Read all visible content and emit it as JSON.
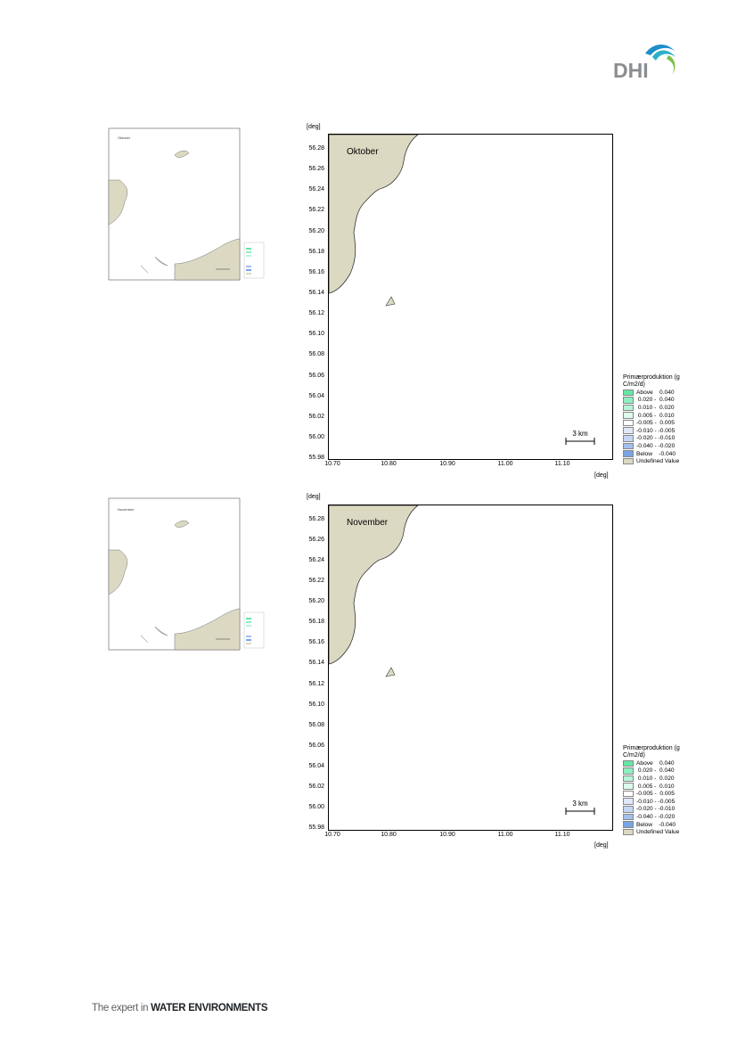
{
  "header": {
    "logo_text": "DHI"
  },
  "axes": {
    "unit_label": "[deg]",
    "y_ticks": [
      "56.28",
      "56.26",
      "56.24",
      "56.22",
      "56.20",
      "56.18",
      "56.16",
      "56.14",
      "56.12",
      "56.10",
      "56.08",
      "56.06",
      "56.04",
      "56.02",
      "56.00",
      "55.98"
    ],
    "x_ticks": [
      "10.70",
      "10.80",
      "10.90",
      "11.00",
      "11.10"
    ]
  },
  "figures": [
    {
      "month": "Oktober",
      "thumb_label": "Oktober",
      "scale_label": "3 km"
    },
    {
      "month": "November",
      "thumb_label": "November",
      "scale_label": "3 km"
    }
  ],
  "legend": {
    "title": "Primærproduktion (g C/m2/d)",
    "items": [
      {
        "label": "Above    0.040",
        "color": "#66e6a6"
      },
      {
        "label": " 0.020 -  0.040",
        "color": "#8eeec0"
      },
      {
        "label": " 0.010 -  0.020",
        "color": "#b6f4d8"
      },
      {
        "label": " 0.005 -  0.010",
        "color": "#ddfaec"
      },
      {
        "label": "-0.005 -  0.005",
        "color": "#ffffff"
      },
      {
        "label": "-0.010 - -0.005",
        "color": "#dfe8f8"
      },
      {
        "label": "-0.020 - -0.010",
        "color": "#c3d6f2"
      },
      {
        "label": "-0.040 - -0.020",
        "color": "#a3c0ec"
      },
      {
        "label": "Below    -0.040",
        "color": "#7aa4e2"
      },
      {
        "label": "Undefined Value",
        "color": "#dcd9c3"
      }
    ]
  },
  "footer": {
    "text_light": "The expert in ",
    "text_bold": "WATER ENVIRONMENTS"
  }
}
